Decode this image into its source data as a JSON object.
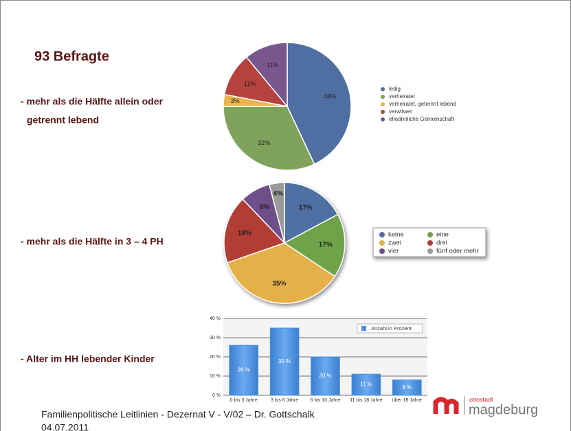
{
  "title": "93 Befragte",
  "bullets": [
    [
      "- mehr als die Hälfte allein oder",
      "getrennt lebend"
    ],
    [
      "- mehr als die Hälfte in 3 – 4 PH"
    ],
    [
      "- Alter im HH lebender Kinder"
    ]
  ],
  "footer": "Familienpolitische Leitlinien - Dezernat V - V/02 – Dr. Gottschalk",
  "date": "04.07.2011",
  "logo": {
    "small": "ottostadt",
    "big": "magdeburg"
  },
  "chart_data": [
    {
      "type": "pie",
      "categories": [
        "ledig",
        "verheiratet",
        "verheiratet, getrennt lebend",
        "verwitwet",
        "eheähnliche Gemeinschaft"
      ],
      "values": [
        43,
        32,
        3,
        11,
        11
      ],
      "value_labels": [
        "43%",
        "32%",
        "3%",
        "11%",
        "11%"
      ],
      "colors": [
        "#4f6fa3",
        "#7fa35b",
        "#e9b44c",
        "#b5423c",
        "#7a568f"
      ]
    },
    {
      "type": "pie",
      "categories": [
        "keine",
        "eine",
        "zwei",
        "drei",
        "vier",
        "fünf oder mehr"
      ],
      "values": [
        17,
        17,
        35,
        18,
        8,
        4
      ],
      "value_labels": [
        "17%",
        "17%",
        "35%",
        "18%",
        "8%",
        "4%"
      ],
      "colors": [
        "#4f6fa3",
        "#6ea34a",
        "#e6b04a",
        "#b23d36",
        "#6e4f8a",
        "#9a9a9a"
      ]
    },
    {
      "type": "bar",
      "categories": [
        "0 bis 3 Jahre",
        "3 bis 6 Jahre",
        "6 bis 10 Jahre",
        "11 bis 18 Jahre",
        "über 18 Jahre"
      ],
      "series": [
        {
          "name": "Anzahl in Prozent",
          "color": "#4a8fdc",
          "values": [
            26,
            35,
            20,
            11,
            8
          ],
          "value_labels": [
            "26 %",
            "35 %",
            "20 %",
            "11 %",
            "8 %"
          ]
        }
      ],
      "ylim": [
        0,
        40
      ],
      "yticks": [
        {
          "value": 0,
          "label": "0 %"
        },
        {
          "value": 10,
          "label": "10 %"
        },
        {
          "value": 20,
          "label": "20 %"
        },
        {
          "value": 30,
          "label": "30 %"
        },
        {
          "value": 40,
          "label": "40 %"
        }
      ],
      "grid": true
    }
  ]
}
